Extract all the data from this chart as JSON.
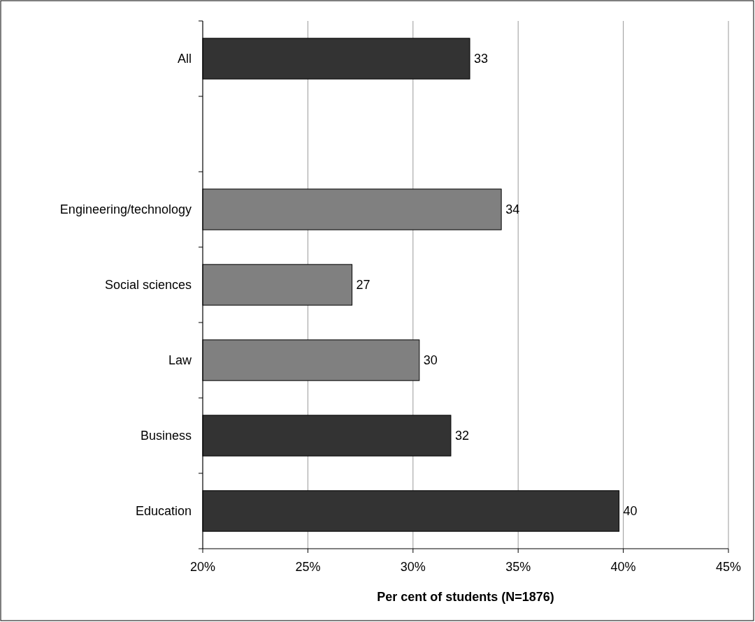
{
  "chart_data": {
    "type": "bar",
    "orientation": "horizontal",
    "xlabel": "Per cent of students (N=1876)",
    "categories": [
      "All",
      null,
      "Engineering/technology",
      "Social sciences",
      "Law",
      "Business",
      "Education"
    ],
    "values": [
      32.7,
      null,
      34.2,
      27.1,
      30.3,
      31.8,
      39.8
    ],
    "colors": [
      "#333333",
      null,
      "#808080",
      "#808080",
      "#808080",
      "#333333",
      "#333333"
    ],
    "value_labels": [
      "33",
      null,
      "34",
      "27",
      "30",
      "32",
      "40"
    ],
    "xlim": [
      20,
      45
    ],
    "xticks": [
      {
        "value": 20,
        "label": "20%"
      },
      {
        "value": 25,
        "label": "25%"
      },
      {
        "value": 30,
        "label": "30%"
      },
      {
        "value": 35,
        "label": "35%"
      },
      {
        "value": 40,
        "label": "40%"
      },
      {
        "value": 45,
        "label": "45%"
      }
    ],
    "grid": "x"
  }
}
